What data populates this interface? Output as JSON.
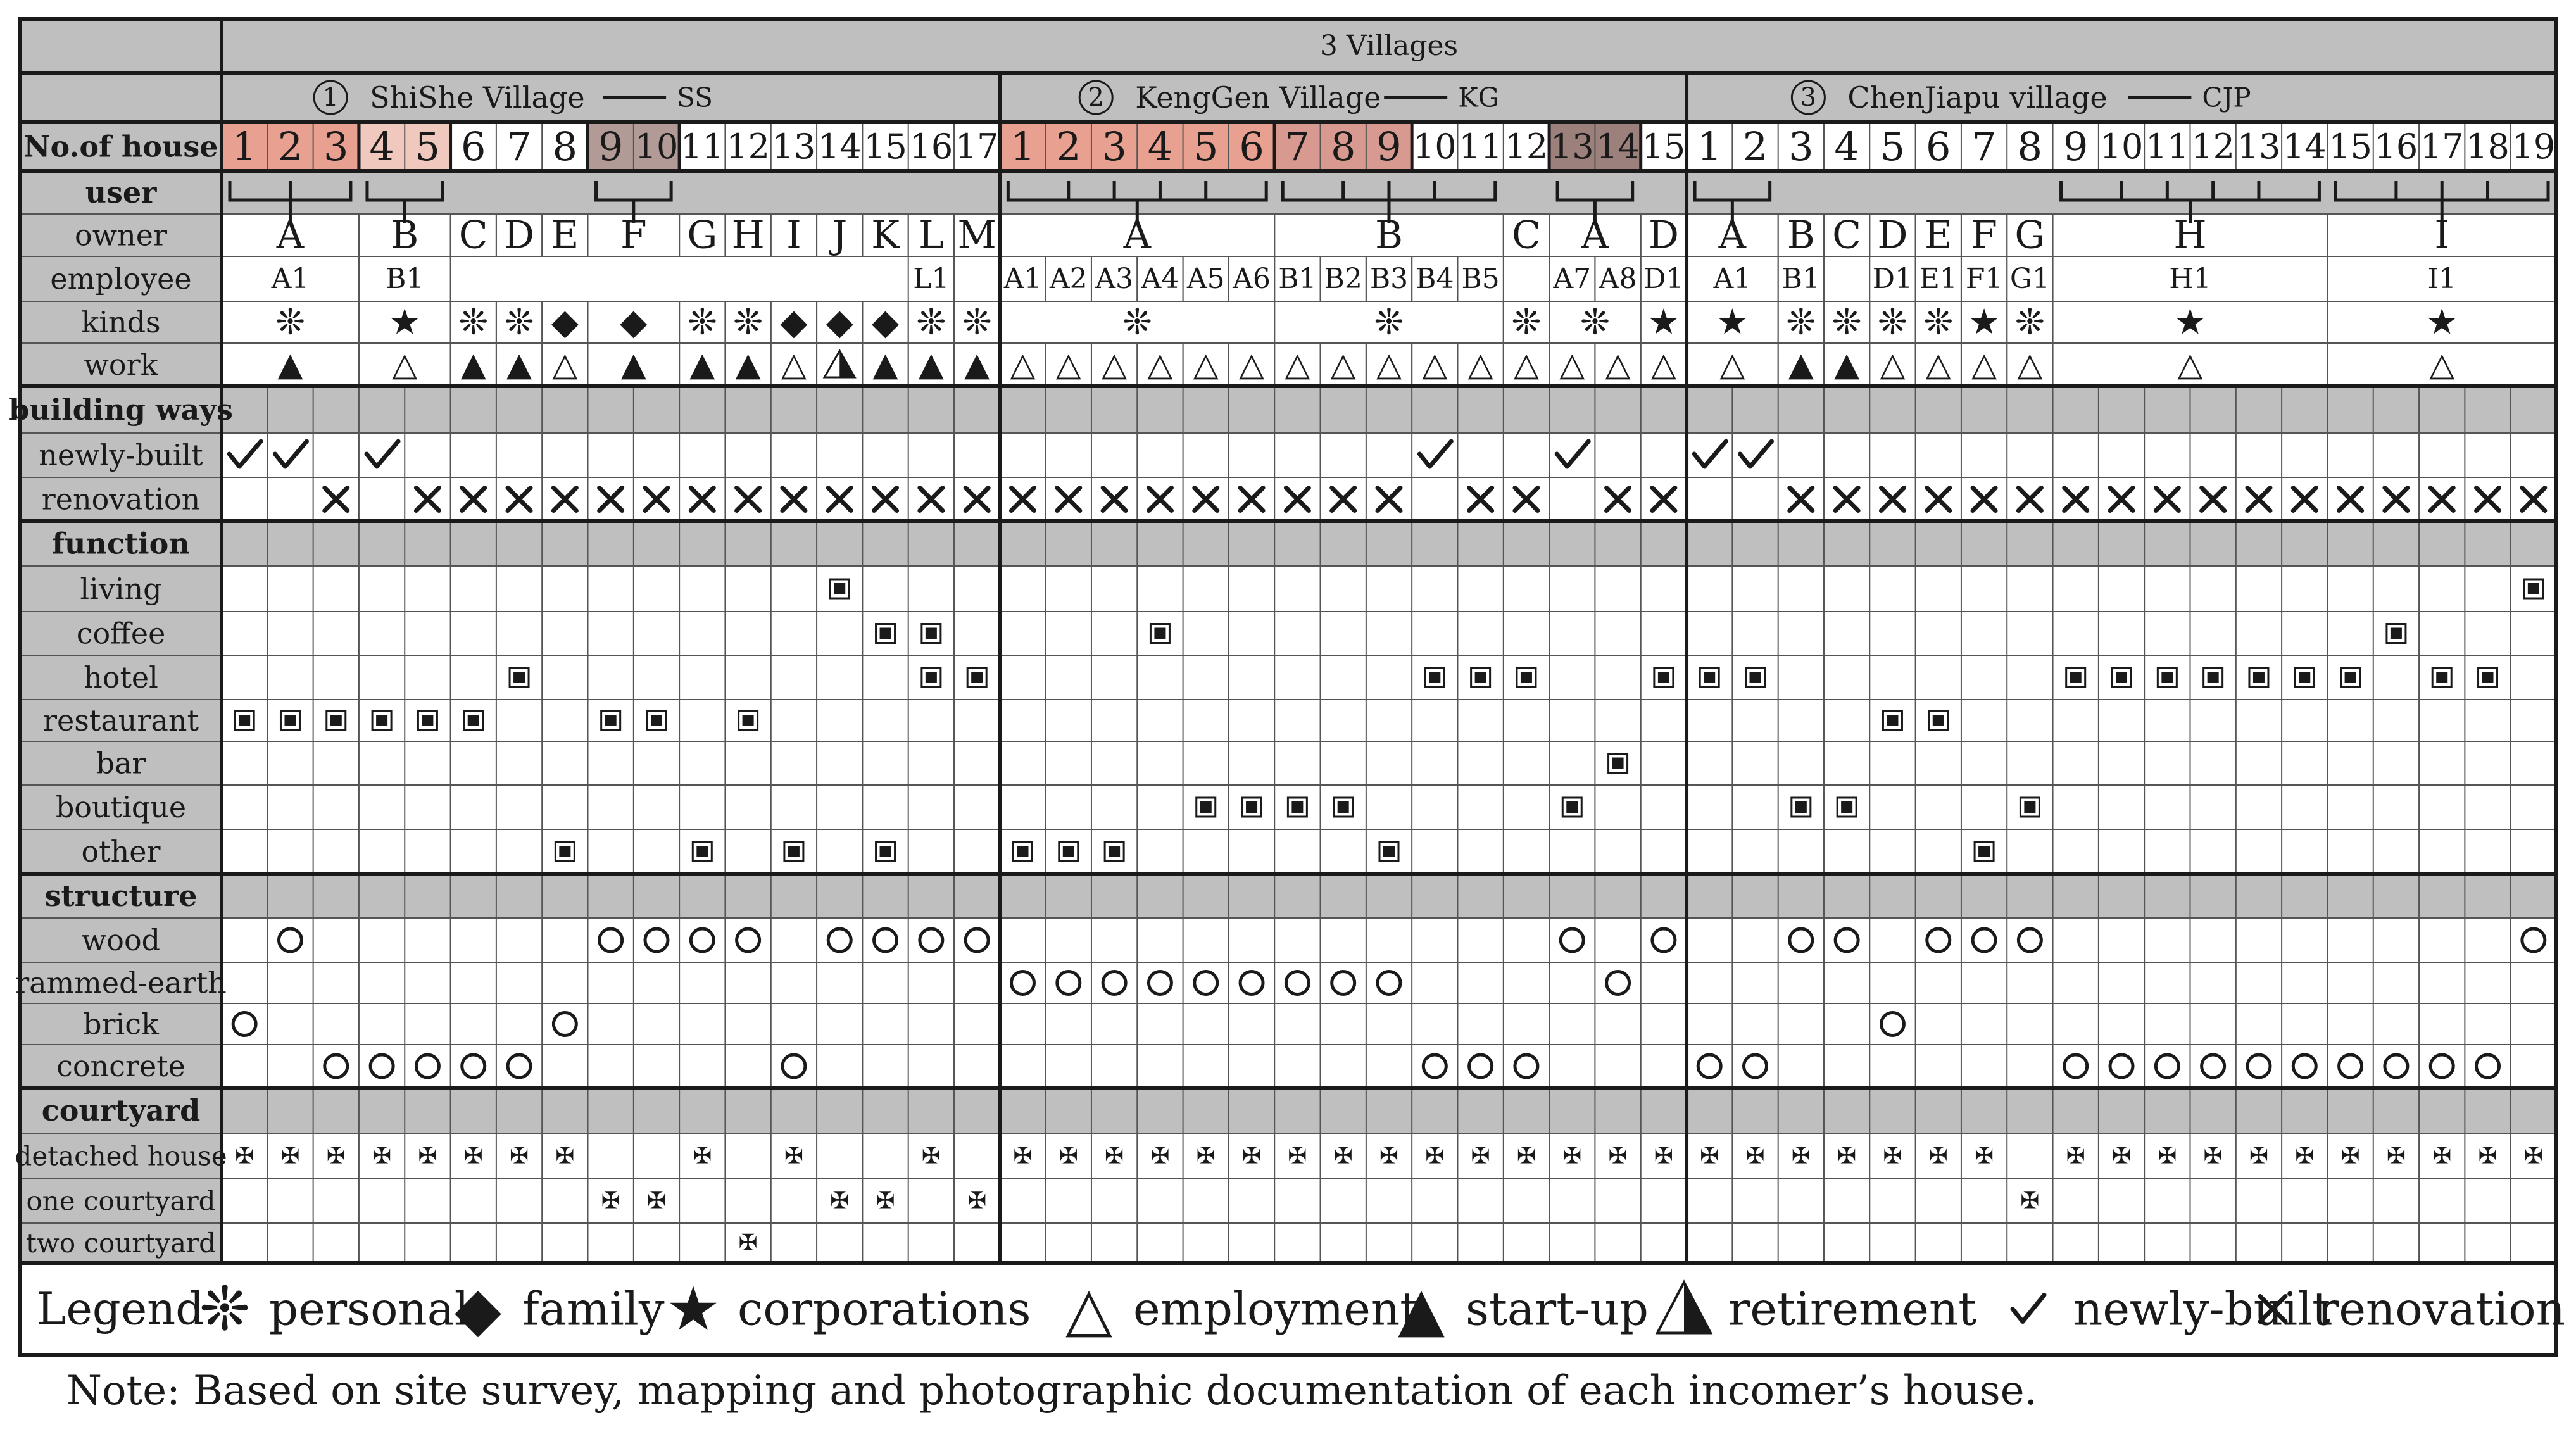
{
  "title": "3 Villages",
  "villages": [
    {
      "circled_num": "1",
      "name": "ShiShe Village",
      "abbr": "SS",
      "houses": [
        "1",
        "2",
        "3",
        "4",
        "5",
        "6",
        "7",
        "8",
        "9",
        "10",
        "11",
        "12",
        "13",
        "14",
        "15",
        "16",
        "17"
      ]
    },
    {
      "circled_num": "2",
      "name": "KengGen Village",
      "abbr": "KG",
      "houses": [
        "1",
        "2",
        "3",
        "4",
        "5",
        "6",
        "7",
        "8",
        "9",
        "10",
        "11",
        "12",
        "13",
        "14",
        "15"
      ]
    },
    {
      "circled_num": "3",
      "name": "ChenJiapu village",
      "abbr": "CJP",
      "houses": [
        "1",
        "2",
        "3",
        "4",
        "5",
        "6",
        "7",
        "8",
        "9",
        "10",
        "11",
        "12",
        "13",
        "14",
        "15",
        "16",
        "17",
        "18",
        "19"
      ]
    }
  ],
  "row_labels": {
    "house": "No.of house",
    "user": "user",
    "owner": "owner",
    "employee": "employee",
    "kinds": "kinds",
    "work": "work",
    "building_ways": "building ways",
    "newly_built": "newly-built",
    "renovation": "renovation",
    "function": "function",
    "living": "living",
    "coffee": "coffee",
    "hotel": "hotel",
    "restaurant": "restaurant",
    "bar": "bar",
    "boutique": "boutique",
    "other": "other",
    "structure": "structure",
    "wood": "wood",
    "rammed_earth": "rammed-earth",
    "brick": "brick",
    "concrete": "concrete",
    "courtyard": "courtyard",
    "detached_house": "detached house",
    "one_courtyard": "one courtyard",
    "two_courtyard": "two courtyard"
  },
  "owners": [
    {
      "label": "A",
      "from": 1,
      "to": 3
    },
    {
      "label": "B",
      "from": 4,
      "to": 5
    },
    {
      "label": "C",
      "from": 6,
      "to": 6
    },
    {
      "label": "D",
      "from": 7,
      "to": 7
    },
    {
      "label": "E",
      "from": 8,
      "to": 8
    },
    {
      "label": "F",
      "from": 9,
      "to": 10
    },
    {
      "label": "G",
      "from": 11,
      "to": 11
    },
    {
      "label": "H",
      "from": 12,
      "to": 12
    },
    {
      "label": "I",
      "from": 13,
      "to": 13
    },
    {
      "label": "J",
      "from": 14,
      "to": 14
    },
    {
      "label": "K",
      "from": 15,
      "to": 15
    },
    {
      "label": "L",
      "from": 16,
      "to": 16
    },
    {
      "label": "M",
      "from": 17,
      "to": 17
    },
    {
      "label": "A",
      "from": 18,
      "to": 23
    },
    {
      "label": "B",
      "from": 24,
      "to": 28
    },
    {
      "label": "C",
      "from": 29,
      "to": 29
    },
    {
      "label": "A",
      "from": 30,
      "to": 31
    },
    {
      "label": "D",
      "from": 32,
      "to": 32
    },
    {
      "label": "A",
      "from": 33,
      "to": 34
    },
    {
      "label": "B",
      "from": 35,
      "to": 35
    },
    {
      "label": "C",
      "from": 36,
      "to": 36
    },
    {
      "label": "D",
      "from": 37,
      "to": 37
    },
    {
      "label": "E",
      "from": 38,
      "to": 38
    },
    {
      "label": "F",
      "from": 39,
      "to": 39
    },
    {
      "label": "G",
      "from": 40,
      "to": 40
    },
    {
      "label": "H",
      "from": 41,
      "to": 46
    },
    {
      "label": "I",
      "from": 47,
      "to": 51
    }
  ],
  "employees": [
    {
      "label": "A1",
      "from": 1,
      "to": 3
    },
    {
      "label": "B1",
      "from": 4,
      "to": 5
    },
    {
      "label": "L1",
      "from": 16,
      "to": 16
    },
    {
      "label": "A1",
      "from": 18,
      "to": 18
    },
    {
      "label": "A2",
      "from": 19,
      "to": 19
    },
    {
      "label": "A3",
      "from": 20,
      "to": 20
    },
    {
      "label": "A4",
      "from": 21,
      "to": 21
    },
    {
      "label": "A5",
      "from": 22,
      "to": 22
    },
    {
      "label": "A6",
      "from": 23,
      "to": 23
    },
    {
      "label": "B1",
      "from": 24,
      "to": 24
    },
    {
      "label": "B2",
      "from": 25,
      "to": 25
    },
    {
      "label": "B3",
      "from": 26,
      "to": 26
    },
    {
      "label": "B4",
      "from": 27,
      "to": 27
    },
    {
      "label": "B5",
      "from": 28,
      "to": 28
    },
    {
      "label": "A7",
      "from": 30,
      "to": 30
    },
    {
      "label": "A8",
      "from": 31,
      "to": 31
    },
    {
      "label": "D1",
      "from": 32,
      "to": 32
    },
    {
      "label": "A1",
      "from": 33,
      "to": 34
    },
    {
      "label": "B1",
      "from": 35,
      "to": 35
    },
    {
      "label": "D1",
      "from": 37,
      "to": 37
    },
    {
      "label": "E1",
      "from": 38,
      "to": 38
    },
    {
      "label": "F1",
      "from": 39,
      "to": 39
    },
    {
      "label": "G1",
      "from": 40,
      "to": 40
    },
    {
      "label": "H1",
      "from": 41,
      "to": 46
    },
    {
      "label": "I1",
      "from": 47,
      "to": 51
    }
  ],
  "kinds": [
    {
      "sym": "❊",
      "from": 1,
      "to": 3
    },
    {
      "sym": "★",
      "from": 4,
      "to": 5
    },
    {
      "sym": "❊",
      "from": 6,
      "to": 6
    },
    {
      "sym": "❊",
      "from": 7,
      "to": 7
    },
    {
      "sym": "◆",
      "from": 8,
      "to": 8
    },
    {
      "sym": "◆",
      "from": 9,
      "to": 10
    },
    {
      "sym": "❊",
      "from": 11,
      "to": 11
    },
    {
      "sym": "❊",
      "from": 12,
      "to": 12
    },
    {
      "sym": "◆",
      "from": 13,
      "to": 13
    },
    {
      "sym": "◆",
      "from": 14,
      "to": 14
    },
    {
      "sym": "◆",
      "from": 15,
      "to": 15
    },
    {
      "sym": "❊",
      "from": 16,
      "to": 16
    },
    {
      "sym": "❊",
      "from": 17,
      "to": 17
    },
    {
      "sym": "❊",
      "from": 18,
      "to": 23
    },
    {
      "sym": "❊",
      "from": 24,
      "to": 28
    },
    {
      "sym": "❊",
      "from": 29,
      "to": 29
    },
    {
      "sym": "❊",
      "from": 30,
      "to": 31
    },
    {
      "sym": "★",
      "from": 32,
      "to": 32
    },
    {
      "sym": "★",
      "from": 33,
      "to": 34
    },
    {
      "sym": "❊",
      "from": 35,
      "to": 35
    },
    {
      "sym": "❊",
      "from": 36,
      "to": 36
    },
    {
      "sym": "❊",
      "from": 37,
      "to": 37
    },
    {
      "sym": "❊",
      "from": 38,
      "to": 38
    },
    {
      "sym": "★",
      "from": 39,
      "to": 39
    },
    {
      "sym": "❊",
      "from": 40,
      "to": 40
    },
    {
      "sym": "★",
      "from": 41,
      "to": 46
    },
    {
      "sym": "★",
      "from": 47,
      "to": 51
    }
  ],
  "work": [
    {
      "sym": "▲",
      "from": 1,
      "to": 3
    },
    {
      "sym": "△",
      "from": 4,
      "to": 5
    },
    {
      "sym": "▲",
      "from": 6,
      "to": 6
    },
    {
      "sym": "▲",
      "from": 7,
      "to": 7
    },
    {
      "sym": "△",
      "from": 8,
      "to": 8
    },
    {
      "sym": "▲",
      "from": 9,
      "to": 10
    },
    {
      "sym": "▲",
      "from": 11,
      "to": 11
    },
    {
      "sym": "▲",
      "from": 12,
      "to": 12
    },
    {
      "sym": "△",
      "from": 13,
      "to": 13
    },
    {
      "sym": "◭",
      "from": 14,
      "to": 14
    },
    {
      "sym": "▲",
      "from": 15,
      "to": 15
    },
    {
      "sym": "▲",
      "from": 16,
      "to": 16
    },
    {
      "sym": "▲",
      "from": 17,
      "to": 17
    },
    {
      "sym": "△",
      "from": 18,
      "to": 18
    },
    {
      "sym": "△",
      "from": 19,
      "to": 19
    },
    {
      "sym": "△",
      "from": 20,
      "to": 20
    },
    {
      "sym": "△",
      "from": 21,
      "to": 21
    },
    {
      "sym": "△",
      "from": 22,
      "to": 22
    },
    {
      "sym": "△",
      "from": 23,
      "to": 23
    },
    {
      "sym": "△",
      "from": 24,
      "to": 24
    },
    {
      "sym": "△",
      "from": 25,
      "to": 25
    },
    {
      "sym": "△",
      "from": 26,
      "to": 26
    },
    {
      "sym": "△",
      "from": 27,
      "to": 27
    },
    {
      "sym": "△",
      "from": 28,
      "to": 28
    },
    {
      "sym": "△",
      "from": 29,
      "to": 29
    },
    {
      "sym": "△",
      "from": 30,
      "to": 30
    },
    {
      "sym": "△",
      "from": 31,
      "to": 31
    },
    {
      "sym": "△",
      "from": 32,
      "to": 32
    },
    {
      "sym": "△",
      "from": 33,
      "to": 34
    },
    {
      "sym": "▲",
      "from": 35,
      "to": 35
    },
    {
      "sym": "▲",
      "from": 36,
      "to": 36
    },
    {
      "sym": "△",
      "from": 37,
      "to": 37
    },
    {
      "sym": "△",
      "from": 38,
      "to": 38
    },
    {
      "sym": "△",
      "from": 39,
      "to": 39
    },
    {
      "sym": "△",
      "from": 40,
      "to": 40
    },
    {
      "sym": "△",
      "from": 41,
      "to": 46
    },
    {
      "sym": "△",
      "from": 47,
      "to": 51
    }
  ],
  "user_brackets": [
    {
      "from": 1,
      "to": 3
    },
    {
      "from": 4,
      "to": 5
    },
    {
      "from": 9,
      "to": 10
    },
    {
      "from": 18,
      "to": 23
    },
    {
      "from": 24,
      "to": 28
    },
    {
      "from": 30,
      "to": 31
    },
    {
      "from": 33,
      "to": 34
    },
    {
      "from": 41,
      "to": 46
    },
    {
      "from": 47,
      "to": 51
    }
  ],
  "house_shading": [
    {
      "from": 1,
      "to": 3,
      "color": "#e8a090"
    },
    {
      "from": 4,
      "to": 5,
      "color": "#f0c8be"
    },
    {
      "from": 9,
      "to": 10,
      "color": "#b29a96"
    },
    {
      "from": 18,
      "to": 23,
      "color": "#e8a090"
    },
    {
      "from": 24,
      "to": 26,
      "color": "#d89a90"
    },
    {
      "from": 30,
      "to": 31,
      "color": "#9c807c"
    }
  ],
  "matrix": {
    "newly_built": [
      1,
      2,
      4,
      27,
      30,
      33,
      34
    ],
    "renovation": [
      3,
      5,
      6,
      7,
      8,
      9,
      10,
      11,
      12,
      13,
      14,
      15,
      16,
      17,
      18,
      19,
      20,
      21,
      22,
      23,
      24,
      25,
      26,
      28,
      29,
      31,
      32,
      35,
      36,
      37,
      38,
      39,
      40,
      41,
      42,
      43,
      44,
      45,
      46,
      47,
      48,
      49,
      50,
      51
    ],
    "living": [
      14,
      51
    ],
    "coffee": [
      15,
      16,
      21,
      48
    ],
    "hotel": [
      7,
      16,
      17,
      27,
      28,
      29,
      32,
      33,
      34,
      41,
      42,
      43,
      44,
      45,
      46,
      47,
      49,
      50
    ],
    "restaurant": [
      1,
      2,
      3,
      4,
      5,
      6,
      9,
      10,
      12,
      37,
      38
    ],
    "bar": [
      31
    ],
    "boutique": [
      22,
      23,
      24,
      25,
      30,
      35,
      36,
      40
    ],
    "other": [
      8,
      11,
      13,
      15,
      18,
      19,
      20,
      26,
      39
    ],
    "wood": [
      2,
      9,
      10,
      11,
      12,
      14,
      15,
      16,
      17,
      30,
      32,
      35,
      36,
      38,
      39,
      40,
      51
    ],
    "rammed_earth": [
      18,
      19,
      20,
      21,
      22,
      23,
      24,
      25,
      26,
      31
    ],
    "brick": [
      1,
      8,
      37
    ],
    "concrete": [
      3,
      4,
      5,
      6,
      7,
      13,
      27,
      28,
      29,
      33,
      34,
      41,
      42,
      43,
      44,
      45,
      46,
      47,
      48,
      49,
      50
    ],
    "detached_house": [
      1,
      2,
      3,
      4,
      5,
      6,
      7,
      8,
      11,
      13,
      16,
      18,
      19,
      20,
      21,
      22,
      23,
      24,
      25,
      26,
      27,
      28,
      29,
      30,
      31,
      32,
      33,
      34,
      35,
      36,
      37,
      38,
      39,
      41,
      42,
      43,
      44,
      45,
      46,
      47,
      48,
      49,
      50,
      51
    ],
    "one_courtyard": [
      9,
      10,
      14,
      15,
      17,
      40
    ],
    "two_courtyard": [
      12
    ]
  },
  "legend": {
    "title": "Legend",
    "items": [
      {
        "sym": "❊",
        "label": "personal"
      },
      {
        "sym": "◆",
        "label": "family"
      },
      {
        "sym": "★",
        "label": "corporations"
      },
      {
        "sym": "△",
        "label": "employment"
      },
      {
        "sym": "▲",
        "label": "start-up"
      },
      {
        "sym": "◭",
        "label": "retirement"
      },
      {
        "sym": "✓",
        "label": "newly-built"
      },
      {
        "sym": "×",
        "label": "renovation"
      }
    ]
  },
  "note": "Note: Based on site survey, mapping and photographic documentation of each incomer’s house."
}
